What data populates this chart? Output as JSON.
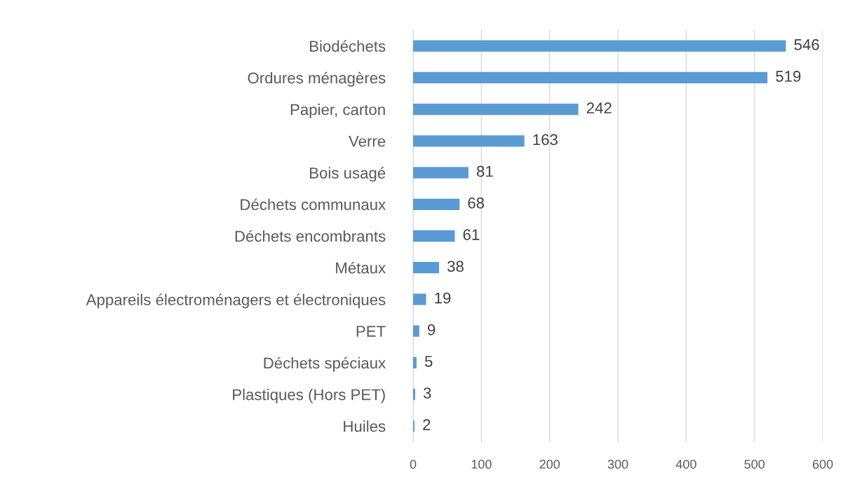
{
  "chart_data": {
    "type": "bar",
    "orientation": "horizontal",
    "categories": [
      "Biodéchets",
      "Ordures ménagères",
      "Papier, carton",
      "Verre",
      "Bois usagé",
      "Déchets communaux",
      "Déchets encombrants",
      "Métaux",
      "Appareils électroménagers et électroniques",
      "PET",
      "Déchets spéciaux",
      "Plastiques (Hors PET)",
      "Huiles"
    ],
    "values": [
      546,
      519,
      242,
      163,
      81,
      68,
      61,
      38,
      19,
      9,
      5,
      3,
      2
    ],
    "color": "#5b9bd5",
    "xlim": [
      0,
      600
    ],
    "xticks": [
      0,
      100,
      200,
      300,
      400,
      500,
      600
    ],
    "grid": "x",
    "data_labels": true
  }
}
